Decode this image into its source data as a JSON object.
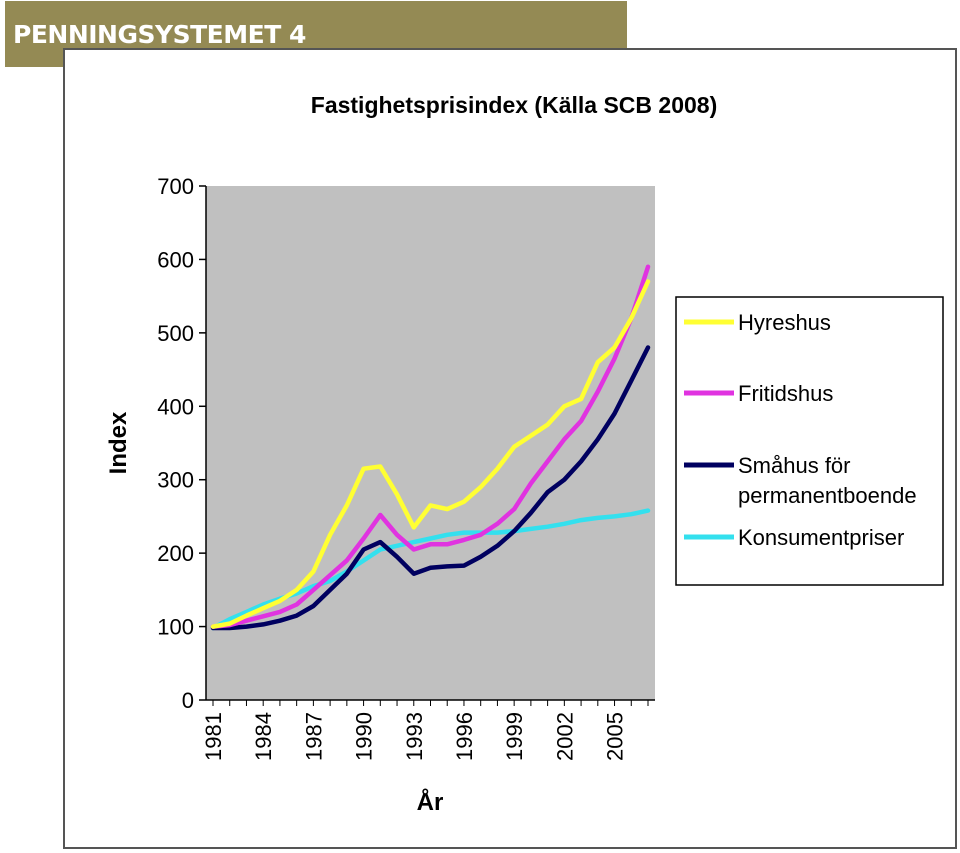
{
  "banner": {
    "text": "PENNINGSYSTEMET 4"
  },
  "colors": {
    "banner_bg": "#948a54",
    "plot_bg": "#c0c0c0"
  },
  "chart_data": {
    "type": "line",
    "title": "Fastighetsprisindex (Källa SCB 2008)",
    "xlabel": "År",
    "ylabel": "Index",
    "ylim": [
      0,
      700
    ],
    "yticks": [
      0,
      100,
      200,
      300,
      400,
      500,
      600,
      700
    ],
    "x": [
      1981,
      1982,
      1983,
      1984,
      1985,
      1986,
      1987,
      1988,
      1989,
      1990,
      1991,
      1992,
      1993,
      1994,
      1995,
      1996,
      1997,
      1998,
      1999,
      2000,
      2001,
      2002,
      2003,
      2004,
      2005,
      2006,
      2007
    ],
    "xtick_labels": [
      "1981",
      "1984",
      "1987",
      "1990",
      "1993",
      "1996",
      "1999",
      "2002",
      "2005"
    ],
    "grid": false,
    "legend_position": "right",
    "series": [
      {
        "name": "Hyreshus",
        "color": "#ffff33",
        "values": [
          100,
          104,
          115,
          125,
          135,
          150,
          175,
          225,
          265,
          315,
          318,
          280,
          235,
          265,
          260,
          270,
          290,
          315,
          345,
          360,
          375,
          400,
          410,
          460,
          480,
          520,
          570
        ]
      },
      {
        "name": "Fritidshus",
        "color": "#e033e0",
        "values": [
          100,
          102,
          108,
          114,
          120,
          130,
          150,
          170,
          190,
          220,
          252,
          225,
          205,
          212,
          212,
          218,
          225,
          240,
          260,
          295,
          325,
          355,
          380,
          420,
          465,
          520,
          590
        ]
      },
      {
        "name": "Småhus för\npermanentboende",
        "color": "#000060",
        "values": [
          98,
          98,
          100,
          103,
          108,
          115,
          128,
          150,
          172,
          205,
          215,
          195,
          172,
          180,
          182,
          183,
          195,
          210,
          230,
          255,
          283,
          300,
          325,
          355,
          390,
          435,
          480
        ]
      },
      {
        "name": "Konsumentpriser",
        "color": "#33e0ee",
        "values": [
          98,
          110,
          120,
          130,
          138,
          145,
          155,
          162,
          175,
          190,
          205,
          210,
          215,
          220,
          225,
          228,
          228,
          228,
          230,
          233,
          236,
          240,
          245,
          248,
          250,
          253,
          258
        ]
      }
    ]
  }
}
